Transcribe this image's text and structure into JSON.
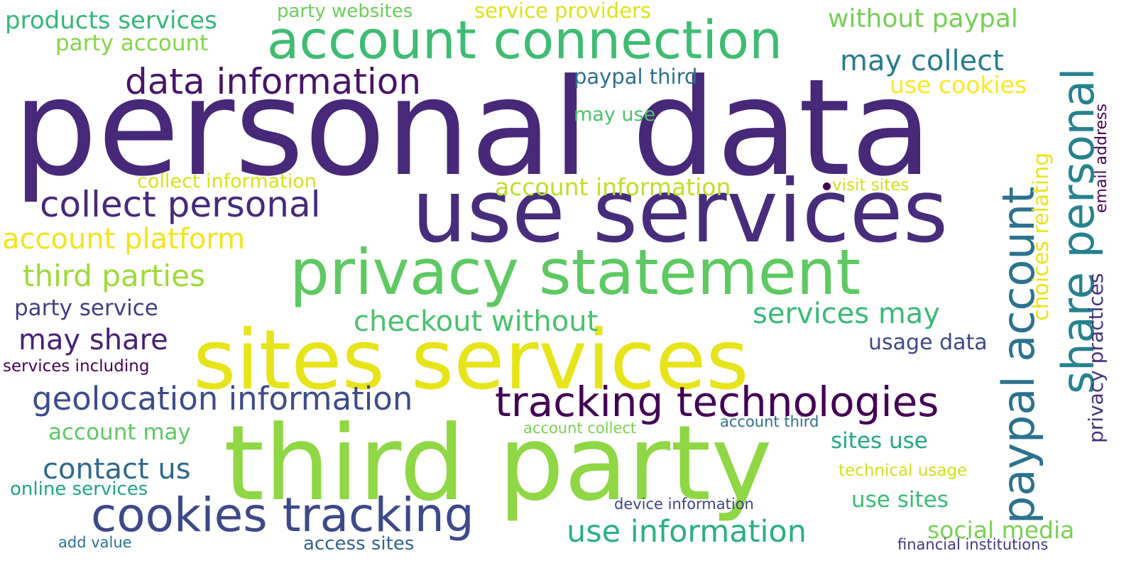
{
  "words": [
    {
      "text": "personal data",
      "color": "#482878"
    },
    {
      "text": "use services",
      "color": "#472d7b"
    },
    {
      "text": "third party",
      "color": "#8fd744"
    },
    {
      "text": "sites services",
      "color": "#e7e419"
    },
    {
      "text": "privacy statement",
      "color": "#5ec962"
    },
    {
      "text": "account connection",
      "color": "#3fbc73"
    },
    {
      "text": "cookies tracking",
      "color": "#3e4989"
    },
    {
      "text": "tracking technologies",
      "color": "#440154"
    },
    {
      "text": "data information",
      "color": "#481668"
    },
    {
      "text": "collect personal",
      "color": "#472a7a"
    },
    {
      "text": "geolocation information",
      "color": "#3e4c8a"
    },
    {
      "text": "use information",
      "color": "#2ab07f"
    },
    {
      "text": "paypal account",
      "color": "#2c728e"
    },
    {
      "text": "share personal",
      "color": "#26828e"
    },
    {
      "text": "third parties",
      "color": "#a0da39"
    },
    {
      "text": "account platform",
      "color": "#f1e51d"
    },
    {
      "text": "may share",
      "color": "#482173"
    },
    {
      "text": "contact us",
      "color": "#31688e"
    },
    {
      "text": "checkout without",
      "color": "#4ac16d"
    },
    {
      "text": "services may",
      "color": "#3aba76"
    },
    {
      "text": "may collect",
      "color": "#287c8e"
    },
    {
      "text": "products services",
      "color": "#35b779"
    },
    {
      "text": "without paypal",
      "color": "#75d054"
    },
    {
      "text": "party account",
      "color": "#86d549"
    },
    {
      "text": "party websites",
      "color": "#6ccd5a"
    },
    {
      "text": "service providers",
      "color": "#dde318"
    },
    {
      "text": "paypal third",
      "color": "#2d708e"
    },
    {
      "text": "use cookies",
      "color": "#fde725"
    },
    {
      "text": "may use",
      "color": "#4ac16d"
    },
    {
      "text": "collect information",
      "color": "#d8e219"
    },
    {
      "text": "account information",
      "color": "#bddf26"
    },
    {
      "text": "visit sites",
      "color": "#d0e11c"
    },
    {
      "text": "choices relating",
      "color": "#eae51a"
    },
    {
      "text": "email address",
      "color": "#440154"
    },
    {
      "text": "privacy practices",
      "color": "#46337f"
    },
    {
      "text": "party service",
      "color": "#433e85"
    },
    {
      "text": "usage data",
      "color": "#3e4989"
    },
    {
      "text": "services including",
      "color": "#440154"
    },
    {
      "text": "account may",
      "color": "#5ec962"
    },
    {
      "text": "account collect",
      "color": "#7ad151"
    },
    {
      "text": "account third",
      "color": "#2c728e"
    },
    {
      "text": "sites use",
      "color": "#22a884"
    },
    {
      "text": "technical usage",
      "color": "#d0e11c"
    },
    {
      "text": "online services",
      "color": "#20a386"
    },
    {
      "text": "device information",
      "color": "#414487"
    },
    {
      "text": "use sites",
      "color": "#3bbb75"
    },
    {
      "text": "social media",
      "color": "#7ad151"
    },
    {
      "text": "add value",
      "color": "#2c728e"
    },
    {
      "text": "access sites",
      "color": "#33638d"
    },
    {
      "text": "financial institutions",
      "color": "#443983"
    }
  ]
}
